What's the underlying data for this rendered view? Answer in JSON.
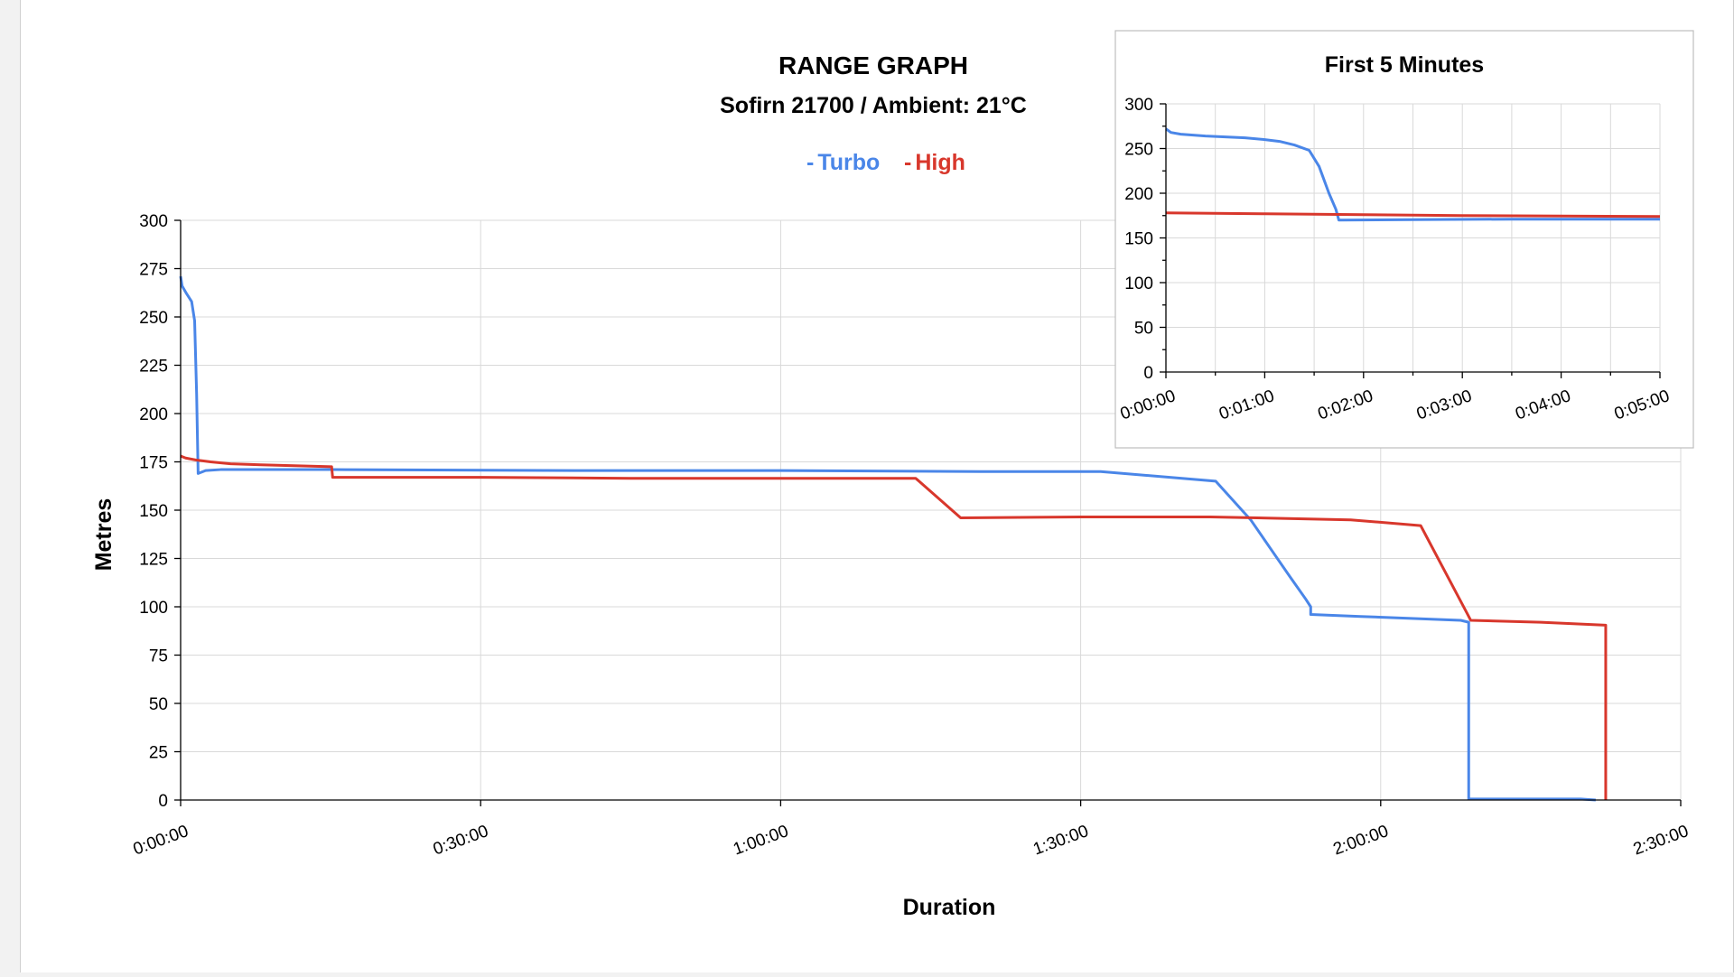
{
  "colors": {
    "turbo": "#4a86e8",
    "high": "#d8372c"
  },
  "chart_data": [
    {
      "type": "line",
      "title": "RANGE GRAPH",
      "subtitle": "Sofirn 21700 / Ambient: 21°C",
      "xlabel": "Duration",
      "ylabel": "Metres",
      "x_unit": "minutes",
      "xlim": [
        0,
        150
      ],
      "ylim": [
        0,
        300
      ],
      "x_ticks": [
        "0:00:00",
        "0:30:00",
        "1:00:00",
        "1:30:00",
        "2:00:00",
        "2:30:00"
      ],
      "y_ticks": [
        "0",
        "25",
        "50",
        "75",
        "100",
        "125",
        "150",
        "175",
        "200",
        "225",
        "250",
        "275",
        "300"
      ],
      "grid": true,
      "legend": "top-center",
      "series": [
        {
          "name": "Turbo",
          "color": "#4a86e8",
          "points": [
            [
              0,
              271
            ],
            [
              0.15,
              266
            ],
            [
              0.6,
              262
            ],
            [
              1.1,
              258
            ],
            [
              1.4,
              248
            ],
            [
              1.6,
              210
            ],
            [
              1.75,
              169
            ],
            [
              2.5,
              170.5
            ],
            [
              4,
              171
            ],
            [
              15,
              171
            ],
            [
              40,
              170.5
            ],
            [
              60,
              170.5
            ],
            [
              80,
              170
            ],
            [
              92,
              170
            ],
            [
              103.5,
              165
            ],
            [
              107,
              145
            ],
            [
              109,
              130
            ],
            [
              111,
              115
            ],
            [
              112.5,
              104
            ],
            [
              113,
              100
            ],
            [
              113,
              96
            ],
            [
              118,
              95
            ],
            [
              128,
              93
            ],
            [
              128.8,
              92
            ],
            [
              128.8,
              0.5
            ],
            [
              140,
              0.5
            ],
            [
              141.5,
              0
            ]
          ]
        },
        {
          "name": "High",
          "color": "#d8372c",
          "points": [
            [
              0,
              178
            ],
            [
              0.5,
              177
            ],
            [
              1.5,
              176
            ],
            [
              3,
              175
            ],
            [
              5,
              174
            ],
            [
              8,
              173.5
            ],
            [
              15.1,
              172.5
            ],
            [
              15.2,
              167
            ],
            [
              30,
              167
            ],
            [
              45,
              166.5
            ],
            [
              60,
              166.5
            ],
            [
              73.5,
              166.5
            ],
            [
              78,
              146
            ],
            [
              90,
              146.5
            ],
            [
              103,
              146.5
            ],
            [
              117,
              145
            ],
            [
              124,
              142
            ],
            [
              128.6,
              97
            ],
            [
              129,
              93
            ],
            [
              136,
              92
            ],
            [
              142.5,
              90.5
            ],
            [
              142.5,
              0
            ]
          ]
        }
      ]
    },
    {
      "type": "line",
      "title": "First 5 Minutes",
      "x_unit": "minutes",
      "xlim": [
        0,
        5
      ],
      "ylim": [
        0,
        300
      ],
      "x_ticks": [
        "0:00:00",
        "0:01:00",
        "0:02:00",
        "0:03:00",
        "0:04:00",
        "0:05:00"
      ],
      "y_ticks": [
        "0",
        "50",
        "100",
        "150",
        "200",
        "250",
        "300"
      ],
      "grid": true,
      "series": [
        {
          "color": "#4a86e8",
          "points": [
            [
              0,
              272
            ],
            [
              0.05,
              268
            ],
            [
              0.15,
              266
            ],
            [
              0.4,
              264
            ],
            [
              0.8,
              262
            ],
            [
              1.0,
              260
            ],
            [
              1.15,
              258
            ],
            [
              1.3,
              254
            ],
            [
              1.45,
              248
            ],
            [
              1.55,
              230
            ],
            [
              1.65,
              200
            ],
            [
              1.72,
              182
            ],
            [
              1.75,
              170
            ],
            [
              2.5,
              170.5
            ],
            [
              3.5,
              171
            ],
            [
              4.5,
              171
            ],
            [
              5,
              171
            ]
          ]
        },
        {
          "color": "#d8372c",
          "points": [
            [
              0,
              178
            ],
            [
              1,
              177
            ],
            [
              2,
              176
            ],
            [
              3,
              175
            ],
            [
              4,
              174.5
            ],
            [
              5,
              174
            ]
          ]
        }
      ]
    }
  ]
}
